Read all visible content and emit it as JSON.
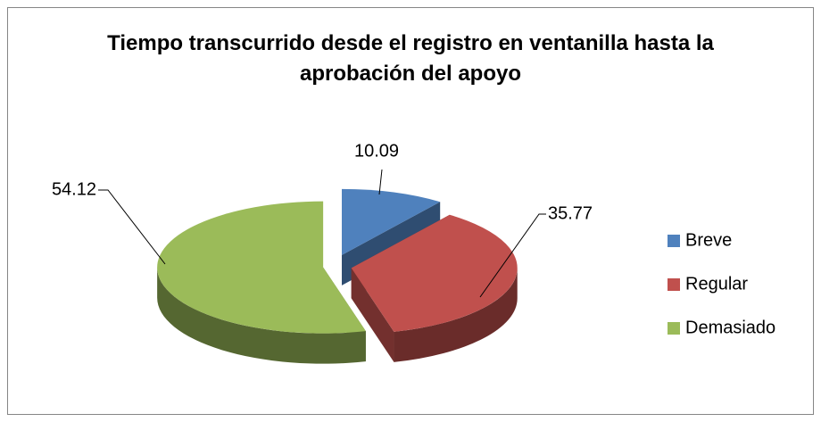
{
  "chart_data": {
    "type": "pie3d",
    "title": "Tiempo transcurrido desde el registro en ventanilla hasta la aprobación del apoyo",
    "categories": [
      "Breve",
      "Regular",
      "Demasiado"
    ],
    "values": [
      10.09,
      35.77,
      54.12
    ],
    "colors": [
      "#4f81bd",
      "#c0504d",
      "#9bbb59"
    ],
    "legend": "right"
  }
}
